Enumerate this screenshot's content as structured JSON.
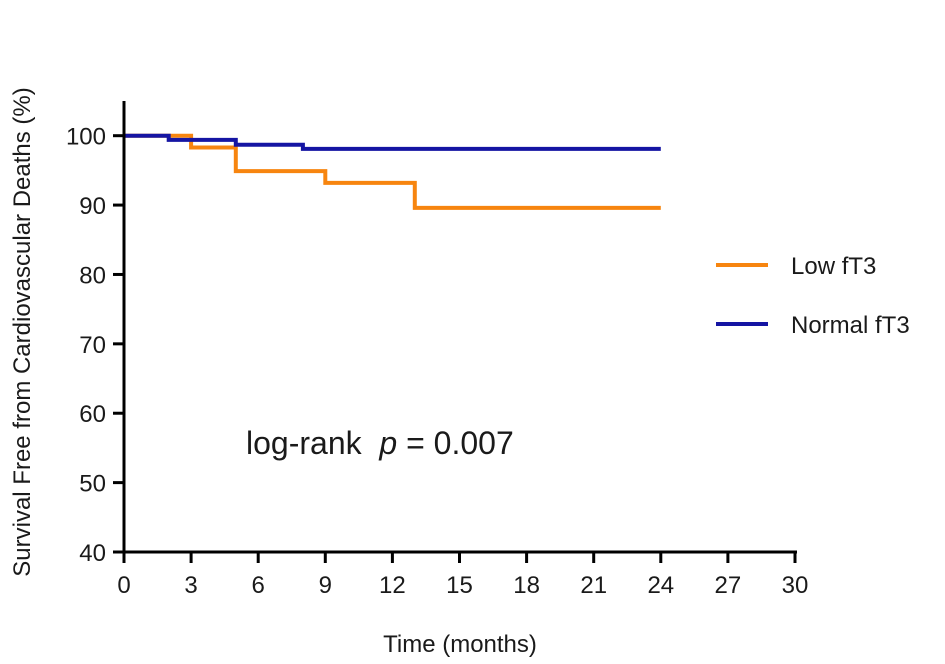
{
  "chart_data": {
    "type": "line",
    "step": true,
    "xlabel": "Time (months)",
    "ylabel": "Survival Free from Cardiovascular Deaths  (%)",
    "xlim": [
      0,
      30
    ],
    "ylim": [
      40,
      105
    ],
    "xticks": [
      0,
      3,
      6,
      9,
      12,
      15,
      18,
      21,
      24,
      27,
      30
    ],
    "yticks": [
      40,
      50,
      60,
      70,
      80,
      90,
      100
    ],
    "grid": false,
    "legend_position": "right",
    "series": [
      {
        "name": "Low fT3",
        "color": "#f7850f",
        "points": [
          [
            0,
            100
          ],
          [
            3,
            100
          ],
          [
            3,
            98.3
          ],
          [
            5,
            98.3
          ],
          [
            5,
            94.9
          ],
          [
            9,
            94.9
          ],
          [
            9,
            93.2
          ],
          [
            13,
            93.2
          ],
          [
            13,
            89.6
          ],
          [
            24,
            89.6
          ]
        ]
      },
      {
        "name": "Normal fT3",
        "color": "#1515a3",
        "points": [
          [
            0,
            100
          ],
          [
            2,
            100
          ],
          [
            2,
            99.4
          ],
          [
            5,
            99.4
          ],
          [
            5,
            98.7
          ],
          [
            8,
            98.7
          ],
          [
            8,
            98.1
          ],
          [
            24,
            98.1
          ]
        ]
      }
    ],
    "annotation": {
      "prefix": "log-rank  ",
      "p_symbol": "p",
      "suffix": " = 0.007"
    }
  }
}
